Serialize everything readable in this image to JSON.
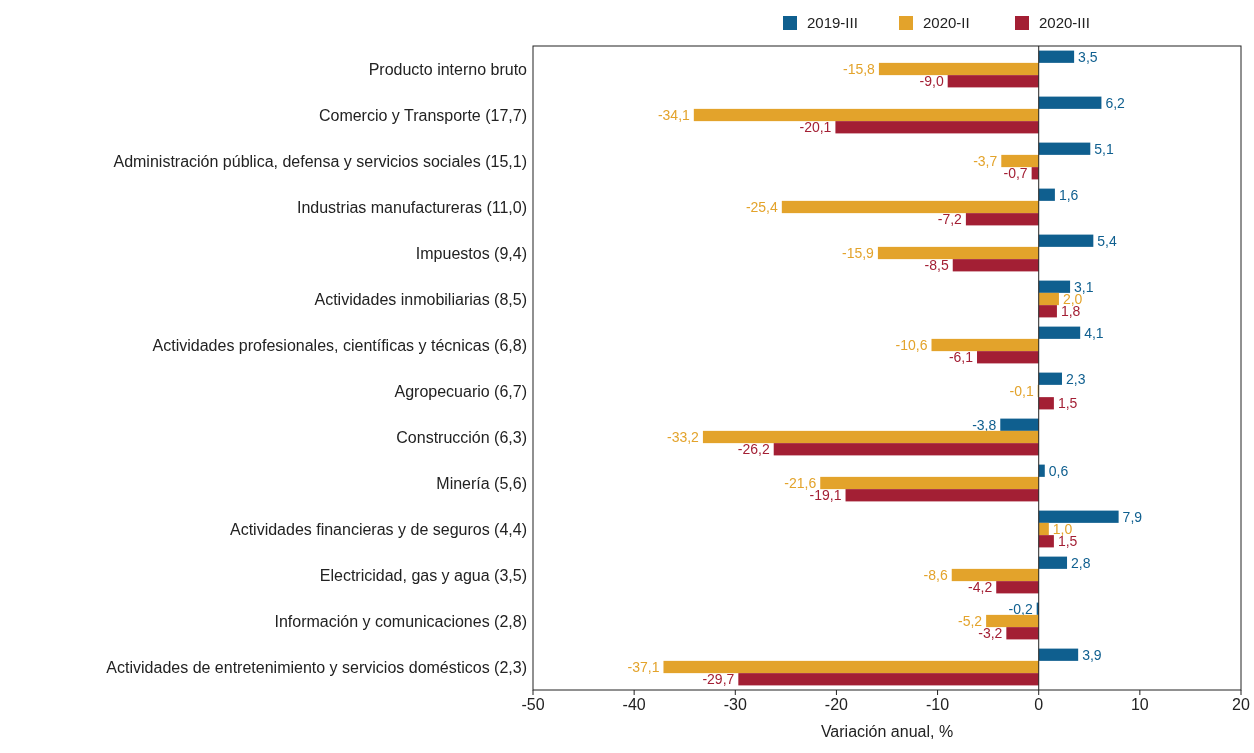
{
  "chart_data": {
    "type": "bar",
    "orientation": "horizontal",
    "xlabel": "Variación anual, %",
    "categories": [
      "Producto interno bruto",
      "Comercio y Transporte (17,7)",
      "Administración pública, defensa y servicios sociales (15,1)",
      "Industrias manufactureras (11,0)",
      "Impuestos (9,4)",
      "Actividades inmobiliarias (8,5)",
      "Actividades profesionales, científicas y técnicas (6,8)",
      "Agropecuario (6,7)",
      "Construcción (6,3)",
      "Minería (5,6)",
      "Actividades financieras y de seguros (4,4)",
      "Electricidad, gas y agua (3,5)",
      "Información y comunicaciones (2,8)",
      "Actividades de entretenimiento y servicios domésticos (2,3)"
    ],
    "series": [
      {
        "name": "2019-III",
        "color": "#0f5f8f",
        "values": [
          3.5,
          6.2,
          5.1,
          1.6,
          5.4,
          3.1,
          4.1,
          2.3,
          -3.8,
          0.6,
          7.9,
          2.8,
          -0.2,
          3.9
        ],
        "value_labels": [
          "3,5",
          "6,2",
          "5,1",
          "1,6",
          "5,4",
          "3,1",
          "4,1",
          "2,3",
          "-3,8",
          "0,6",
          "7,9",
          "2,8",
          "-0,2",
          "3,9"
        ]
      },
      {
        "name": "2020-II",
        "color": "#e3a32b",
        "values": [
          -15.8,
          -34.1,
          -3.7,
          -25.4,
          -15.9,
          2.0,
          -10.6,
          -0.1,
          -33.2,
          -21.6,
          1.0,
          -8.6,
          -5.2,
          -37.1
        ],
        "value_labels": [
          "-15,8",
          "-34,1",
          "-3,7",
          "-25,4",
          "-15,9",
          "2,0",
          "-10,6",
          "-0,1",
          "-33,2",
          "-21,6",
          "1,0",
          "-8,6",
          "-5,2",
          "-37,1"
        ]
      },
      {
        "name": "2020-III",
        "color": "#a31f34",
        "values": [
          -9.0,
          -20.1,
          -0.7,
          -7.2,
          -8.5,
          1.8,
          -6.1,
          1.5,
          -26.2,
          -19.1,
          1.5,
          -4.2,
          -3.2,
          -29.7
        ],
        "value_labels": [
          "-9,0",
          "-20,1",
          "-0,7",
          "-7,2",
          "-8,5",
          "1,8",
          "-6,1",
          "1,5",
          "-26,2",
          "-19,1",
          "1,5",
          "-4,2",
          "-3,2",
          "-29,7"
        ]
      }
    ],
    "xlim": [
      -50,
      20
    ],
    "xticks": [
      -50,
      -40,
      -30,
      -20,
      -10,
      0,
      10,
      20
    ],
    "legend": "top right",
    "ref_lines": [
      {
        "axis": "x",
        "value": 0,
        "color": "#222222"
      }
    ]
  }
}
